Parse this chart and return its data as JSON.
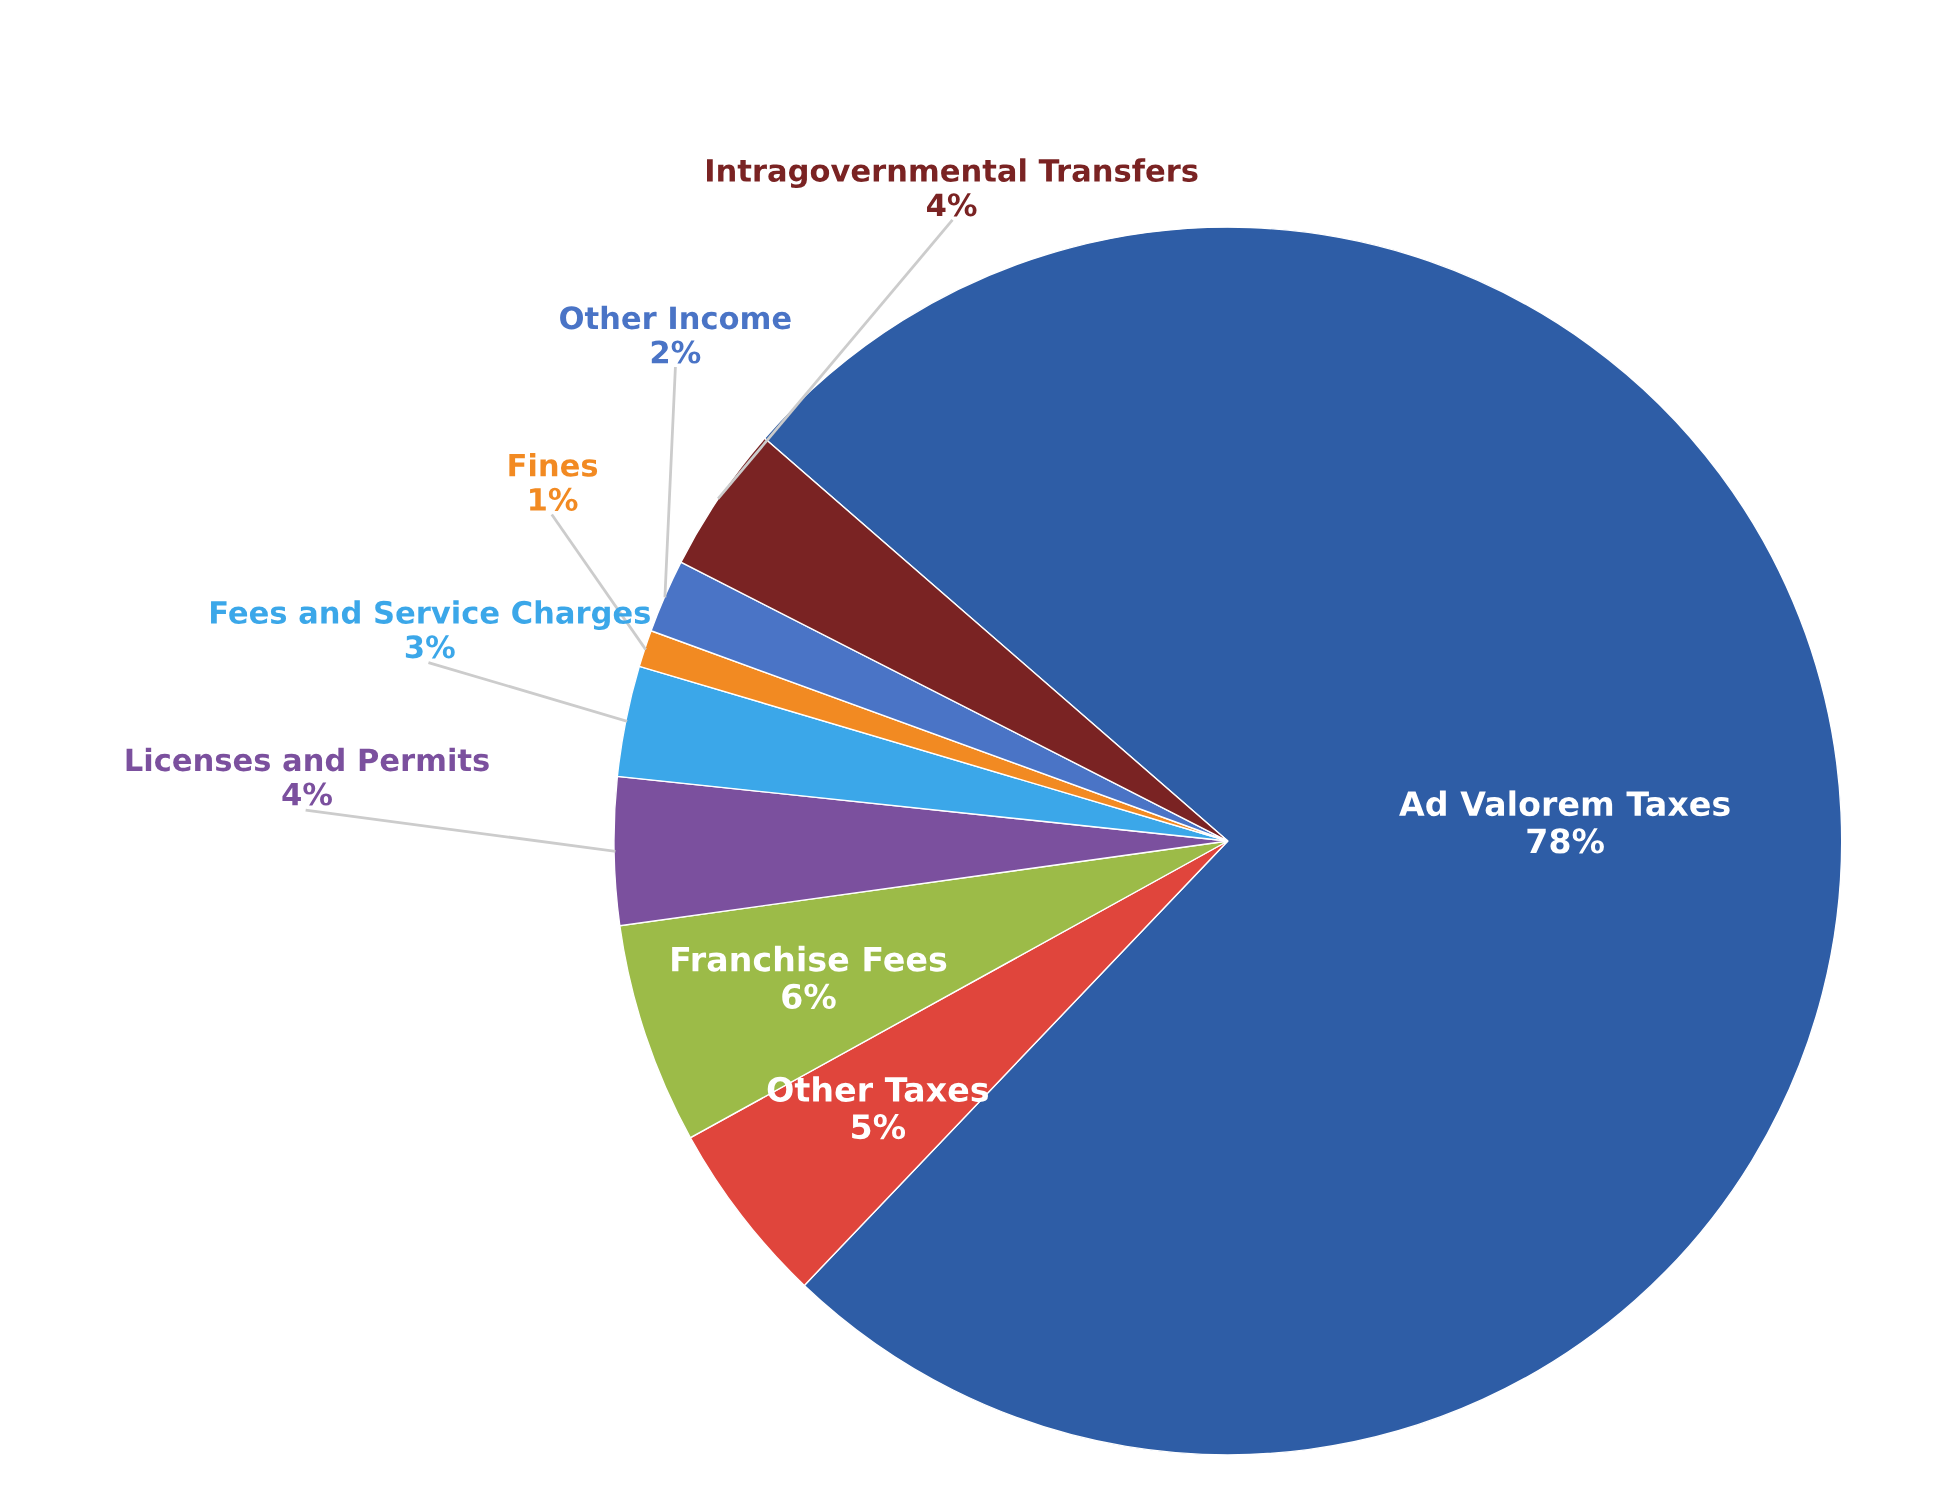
{
  "chart_data": {
    "type": "pie",
    "categories": [
      "Ad Valorem Taxes",
      "Other Taxes",
      "Franchise Fees",
      "Licenses and Permits",
      "Fees and Service Charges",
      "Fines",
      "Other Income",
      "Intragovernmental Transfers"
    ],
    "values": [
      78,
      5,
      6,
      4,
      3,
      1,
      2,
      4
    ],
    "colors": [
      "#2e5da6",
      "#e0453c",
      "#9cbb48",
      "#7b509e",
      "#3ba7e9",
      "#f28a22",
      "#4a74c6",
      "#7a2323"
    ],
    "value_labels": [
      "78%",
      "5%",
      "6%",
      "4%",
      "3%",
      "1%",
      "2%",
      "4%"
    ]
  }
}
